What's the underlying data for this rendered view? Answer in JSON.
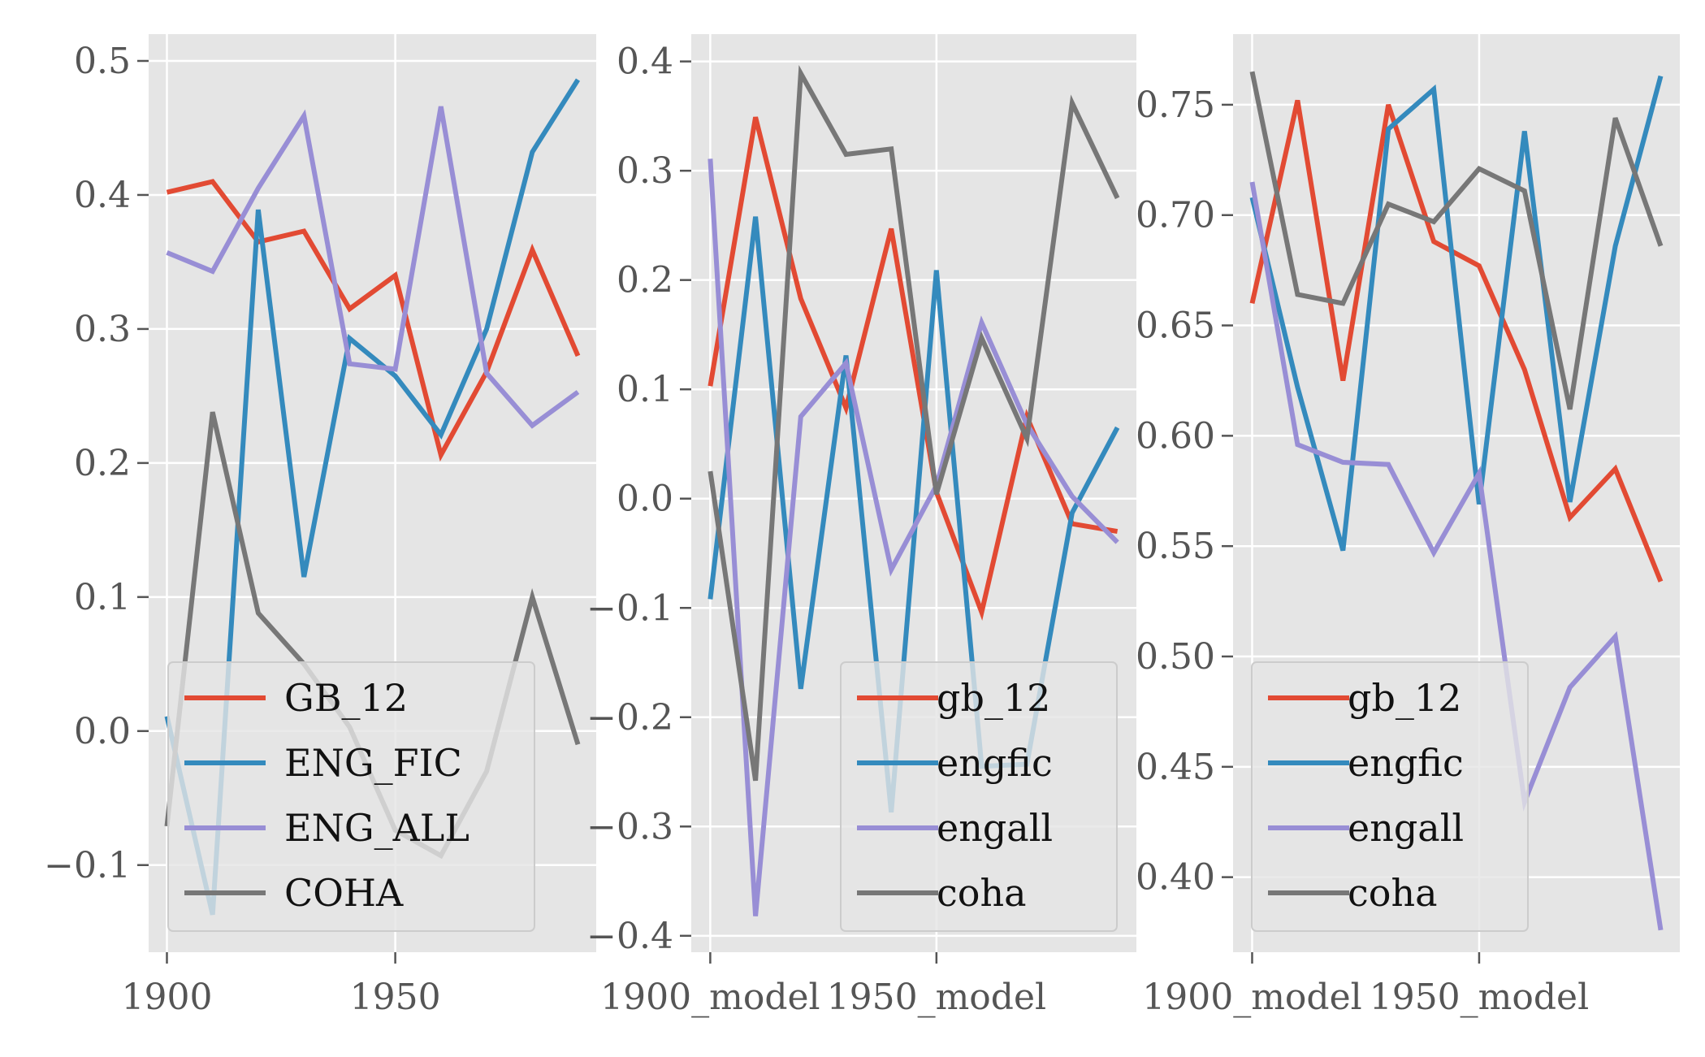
{
  "chart_data": [
    {
      "type": "line",
      "title": "",
      "xlabel": "",
      "ylabel": "",
      "x": [
        1900,
        1910,
        1920,
        1930,
        1940,
        1950,
        1960,
        1970,
        1980,
        1990
      ],
      "xticks": [
        1900,
        1950
      ],
      "xtick_labels": [
        "1900",
        "1950"
      ],
      "yticks": [
        -0.1,
        0.0,
        0.1,
        0.2,
        0.3,
        0.4,
        0.5
      ],
      "ytick_labels": [
        "−0.1",
        "0.0",
        "0.1",
        "0.2",
        "0.3",
        "0.4",
        "0.5"
      ],
      "xlim": [
        1896,
        1994
      ],
      "ylim": [
        -0.165,
        0.52
      ],
      "grid": true,
      "legend": "lower-left",
      "series": [
        {
          "name": "GB_12",
          "color": "#E24A33",
          "values": [
            0.402,
            0.41,
            0.365,
            0.373,
            0.315,
            0.34,
            0.206,
            0.268,
            0.359,
            0.28
          ]
        },
        {
          "name": "ENG_FIC",
          "color": "#348ABD",
          "values": [
            0.011,
            -0.137,
            0.389,
            0.115,
            0.293,
            0.265,
            0.221,
            0.3,
            0.432,
            0.486
          ]
        },
        {
          "name": "ENG_ALL",
          "color": "#988ED5",
          "values": [
            0.357,
            0.343,
            0.405,
            0.459,
            0.274,
            0.27,
            0.466,
            0.267,
            0.228,
            0.253
          ]
        },
        {
          "name": "COHA",
          "color": "#777777",
          "values": [
            -0.071,
            0.238,
            0.088,
            0.05,
            0.003,
            -0.074,
            -0.093,
            -0.03,
            0.1,
            -0.01
          ]
        }
      ]
    },
    {
      "type": "line",
      "title": "",
      "xlabel": "",
      "ylabel": "",
      "x": [
        0,
        1,
        2,
        3,
        4,
        5,
        6,
        7,
        8,
        9
      ],
      "xticks": [
        0,
        5
      ],
      "xtick_labels": [
        "1900_model",
        "1950_model"
      ],
      "yticks": [
        -0.4,
        -0.3,
        -0.2,
        -0.1,
        0.0,
        0.1,
        0.2,
        0.3,
        0.4
      ],
      "ytick_labels": [
        "−0.4",
        "−0.3",
        "−0.2",
        "−0.1",
        "0.0",
        "0.1",
        "0.2",
        "0.3",
        "0.4"
      ],
      "xlim": [
        -0.42,
        9.42
      ],
      "ylim": [
        -0.415,
        0.425
      ],
      "grid": true,
      "legend": "lower-right",
      "series": [
        {
          "name": "gb_12",
          "color": "#E24A33",
          "values": [
            0.103,
            0.349,
            0.183,
            0.083,
            0.247,
            0.006,
            -0.104,
            0.075,
            -0.023,
            -0.03
          ]
        },
        {
          "name": "engfic",
          "color": "#348ABD",
          "values": [
            -0.092,
            0.258,
            -0.174,
            0.131,
            -0.287,
            0.209,
            -0.245,
            -0.243,
            -0.013,
            0.065
          ]
        },
        {
          "name": "engall",
          "color": "#988ED5",
          "values": [
            0.311,
            -0.382,
            0.075,
            0.124,
            -0.065,
            0.012,
            0.161,
            0.068,
            0.002,
            -0.04
          ]
        },
        {
          "name": "coha",
          "color": "#777777",
          "values": [
            0.025,
            -0.258,
            0.389,
            0.315,
            0.32,
            0.004,
            0.147,
            0.055,
            0.362,
            0.275
          ]
        }
      ]
    },
    {
      "type": "line",
      "title": "",
      "xlabel": "",
      "ylabel": "",
      "x": [
        0,
        1,
        2,
        3,
        4,
        5,
        6,
        7,
        8,
        9
      ],
      "xticks": [
        0,
        5
      ],
      "xtick_labels": [
        "1900_model",
        "1950_model"
      ],
      "yticks": [
        0.4,
        0.45,
        0.5,
        0.55,
        0.6,
        0.65,
        0.7,
        0.75
      ],
      "ytick_labels": [
        "0.40",
        "0.45",
        "0.50",
        "0.55",
        "0.60",
        "0.65",
        "0.70",
        "0.75"
      ],
      "xlim": [
        -0.42,
        9.42
      ],
      "ylim": [
        0.366,
        0.782
      ],
      "grid": true,
      "legend": "lower-left",
      "series": [
        {
          "name": "gb_12",
          "color": "#E24A33",
          "values": [
            0.66,
            0.752,
            0.625,
            0.75,
            0.688,
            0.677,
            0.63,
            0.563,
            0.585,
            0.534
          ]
        },
        {
          "name": "engfic",
          "color": "#348ABD",
          "values": [
            0.708,
            0.622,
            0.548,
            0.739,
            0.757,
            0.569,
            0.738,
            0.57,
            0.686,
            0.763
          ]
        },
        {
          "name": "engall",
          "color": "#988ED5",
          "values": [
            0.715,
            0.596,
            0.588,
            0.587,
            0.547,
            0.583,
            0.434,
            0.486,
            0.509,
            0.376
          ]
        },
        {
          "name": "coha",
          "color": "#777777",
          "values": [
            0.765,
            0.664,
            0.66,
            0.705,
            0.697,
            0.721,
            0.711,
            0.612,
            0.744,
            0.686
          ]
        }
      ]
    }
  ]
}
